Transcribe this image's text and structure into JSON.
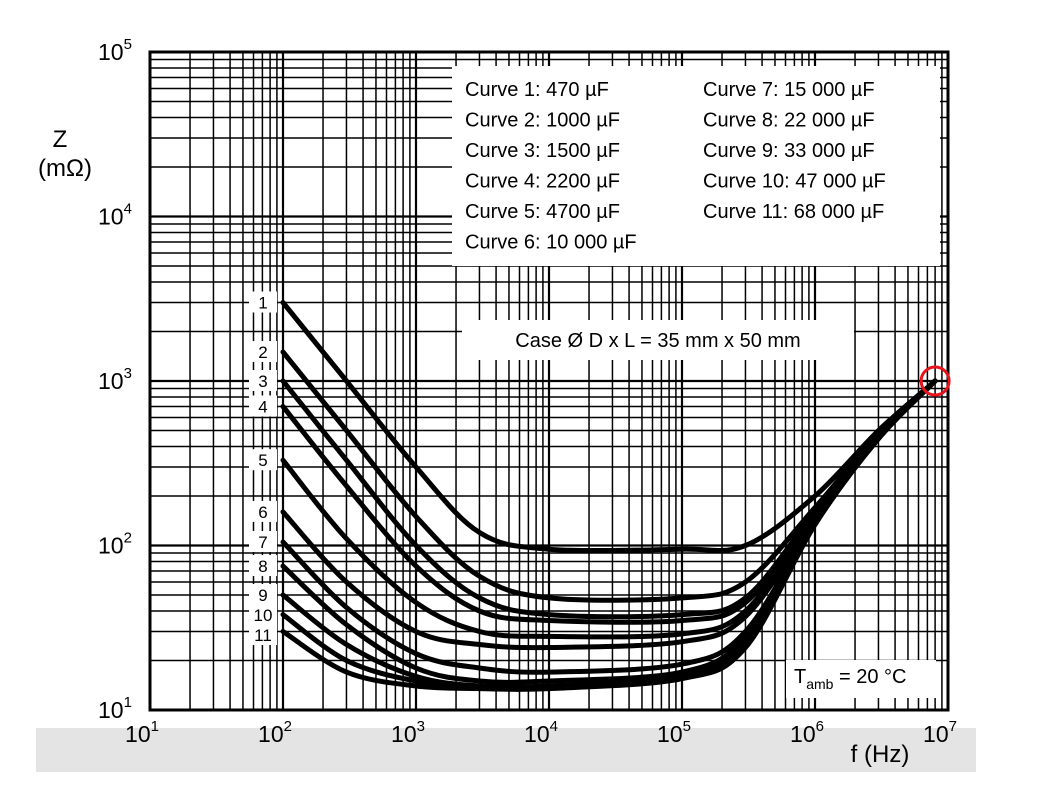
{
  "chart_data": {
    "type": "line",
    "title": "",
    "xlabel": "f (Hz)",
    "ylabel_main": "Z",
    "ylabel_unit": "(mΩ)",
    "x_scale": "log",
    "y_scale": "log",
    "xlim": [
      10,
      10000000
    ],
    "ylim": [
      10,
      100000
    ],
    "grid": true,
    "x_ticks": [
      {
        "base": "10",
        "exp": "1",
        "value": 10
      },
      {
        "base": "10",
        "exp": "2",
        "value": 100
      },
      {
        "base": "10",
        "exp": "3",
        "value": 1000
      },
      {
        "base": "10",
        "exp": "4",
        "value": 10000
      },
      {
        "base": "10",
        "exp": "5",
        "value": 100000
      },
      {
        "base": "10",
        "exp": "6",
        "value": 1000000
      },
      {
        "base": "10",
        "exp": "7",
        "value": 10000000
      }
    ],
    "y_ticks": [
      {
        "base": "10",
        "exp": "1",
        "value": 10
      },
      {
        "base": "10",
        "exp": "2",
        "value": 100
      },
      {
        "base": "10",
        "exp": "3",
        "value": 1000
      },
      {
        "base": "10",
        "exp": "4",
        "value": 10000
      },
      {
        "base": "10",
        "exp": "5",
        "value": 100000
      }
    ],
    "legend_col1": [
      "Curve 1: 470 µF",
      "Curve 2: 1000 µF",
      "Curve 3: 1500 µF",
      "Curve 4: 2200 µF",
      "Curve 5: 4700 µF",
      "Curve 6: 10 000 µF"
    ],
    "legend_col2": [
      "Curve 7: 15 000 µF",
      "Curve 8: 22 000 µF",
      "Curve 9: 33 000 µF",
      "Curve 10: 47 000 µF",
      "Curve 11: 68 000 µF"
    ],
    "case_annotation": "Case Ø D x L = 35 mm x 50 mm",
    "temp_annotation": {
      "prefix": "T",
      "sub": "amb",
      "suffix": " = 20 °C"
    },
    "series": [
      {
        "name": "1",
        "x": [
          100,
          300,
          1000,
          3000,
          10000,
          100000,
          300000,
          1000000,
          3000000,
          8000000
        ],
        "y": [
          3000,
          1000,
          300,
          120,
          95,
          95,
          100,
          200,
          500,
          1000
        ]
      },
      {
        "name": "2",
        "x": [
          100,
          300,
          1000,
          3000,
          10000,
          100000,
          300000,
          1000000,
          3000000,
          8000000
        ],
        "y": [
          1500,
          500,
          150,
          65,
          48,
          48,
          60,
          170,
          480,
          1000
        ]
      },
      {
        "name": "3",
        "x": [
          100,
          300,
          1000,
          3000,
          10000,
          100000,
          300000,
          1000000,
          3000000,
          8000000
        ],
        "y": [
          1000,
          330,
          100,
          48,
          38,
          38,
          48,
          160,
          470,
          1000
        ]
      },
      {
        "name": "4",
        "x": [
          100,
          300,
          1000,
          3000,
          10000,
          100000,
          300000,
          1000000,
          3000000,
          8000000
        ],
        "y": [
          700,
          230,
          75,
          40,
          35,
          35,
          45,
          155,
          465,
          1000
        ]
      },
      {
        "name": "5",
        "x": [
          100,
          300,
          1000,
          3000,
          10000,
          100000,
          300000,
          1000000,
          3000000,
          8000000
        ],
        "y": [
          330,
          110,
          45,
          30,
          28,
          29,
          40,
          150,
          460,
          1000
        ]
      },
      {
        "name": "6",
        "x": [
          100,
          300,
          1000,
          3000,
          10000,
          100000,
          300000,
          1000000,
          3000000,
          8000000
        ],
        "y": [
          160,
          60,
          30,
          25,
          24,
          26,
          37,
          145,
          455,
          1000
        ]
      },
      {
        "name": "7",
        "x": [
          100,
          300,
          1000,
          3000,
          10000,
          100000,
          300000,
          1000000,
          3000000,
          8000000
        ],
        "y": [
          105,
          42,
          22,
          18,
          17,
          19,
          30,
          140,
          450,
          1000
        ]
      },
      {
        "name": "8",
        "x": [
          100,
          300,
          1000,
          3000,
          10000,
          100000,
          300000,
          1000000,
          3000000,
          8000000
        ],
        "y": [
          75,
          33,
          18,
          15,
          15,
          17,
          28,
          138,
          450,
          1000
        ]
      },
      {
        "name": "9",
        "x": [
          100,
          300,
          1000,
          3000,
          10000,
          100000,
          300000,
          1000000,
          3000000,
          8000000
        ],
        "y": [
          50,
          25,
          16,
          14,
          14,
          16,
          26,
          136,
          448,
          1000
        ]
      },
      {
        "name": "10",
        "x": [
          100,
          300,
          1000,
          3000,
          10000,
          100000,
          300000,
          1000000,
          3000000,
          8000000
        ],
        "y": [
          38,
          20,
          15,
          14,
          14,
          16,
          25,
          135,
          447,
          1000
        ]
      },
      {
        "name": "11",
        "x": [
          100,
          300,
          1000,
          3000,
          10000,
          100000,
          300000,
          1000000,
          3000000,
          8000000
        ],
        "y": [
          30,
          17,
          14,
          13.5,
          13.5,
          15.5,
          24,
          134,
          446,
          1000
        ]
      }
    ],
    "highlight_marker": {
      "x": 8000000,
      "y": 1000,
      "color": "#e8141b"
    }
  }
}
